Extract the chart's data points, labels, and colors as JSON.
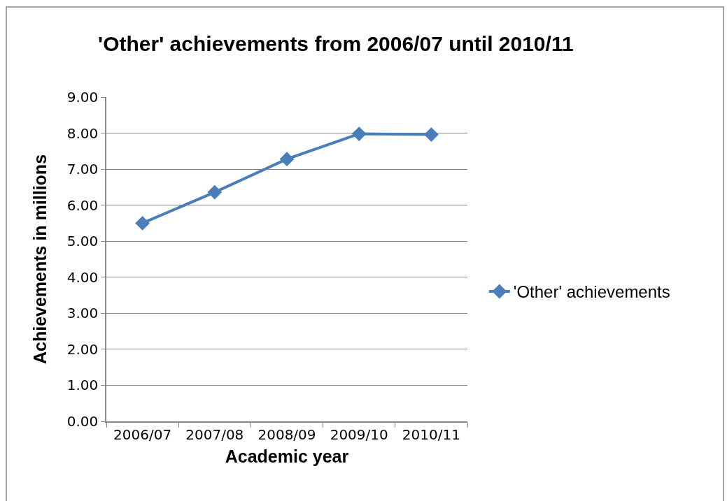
{
  "chart_data": {
    "type": "line",
    "title": "'Other' achievements from 2006/07 until 2010/11",
    "xlabel": "Academic year",
    "ylabel": "Achievements in millions",
    "categories": [
      "2006/07",
      "2007/08",
      "2008/09",
      "2009/10",
      "2010/11"
    ],
    "series": [
      {
        "name": "'Other' achievements",
        "color": "#4a7ebb",
        "values": [
          5.5,
          6.36,
          7.28,
          7.98,
          7.96
        ]
      }
    ],
    "ylim": [
      0,
      9
    ],
    "yticks": [
      {
        "value": 0,
        "label": "0.00"
      },
      {
        "value": 1,
        "label": "1.00"
      },
      {
        "value": 2,
        "label": "2.00"
      },
      {
        "value": 3,
        "label": "3.00"
      },
      {
        "value": 4,
        "label": "4.00"
      },
      {
        "value": 5,
        "label": "5.00"
      },
      {
        "value": 6,
        "label": "6.00"
      },
      {
        "value": 7,
        "label": "7.00"
      },
      {
        "value": 8,
        "label": "8.00"
      },
      {
        "value": 9,
        "label": "9.00"
      }
    ],
    "grid": "y",
    "legend": "right",
    "marker": "diamond",
    "line_style": "solid"
  }
}
